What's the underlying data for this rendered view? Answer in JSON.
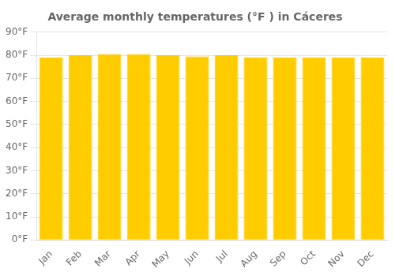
{
  "chart_data": {
    "type": "bar",
    "title": "Average monthly temperatures (°F ) in Cáceres",
    "categories": [
      "Jan",
      "Feb",
      "Mar",
      "Apr",
      "May",
      "Jun",
      "Jul",
      "Aug",
      "Sep",
      "Oct",
      "Nov",
      "Dec"
    ],
    "values": [
      79,
      80,
      80.5,
      80.5,
      80,
      79.5,
      80,
      79,
      79,
      79,
      79,
      79
    ],
    "color": "#FFCC00",
    "ylim": [
      0,
      90
    ],
    "yticks": [
      {
        "value": 0,
        "label": "0°F"
      },
      {
        "value": 10,
        "label": "10°F"
      },
      {
        "value": 20,
        "label": "20°F"
      },
      {
        "value": 30,
        "label": "30°F"
      },
      {
        "value": 40,
        "label": "40°F"
      },
      {
        "value": 50,
        "label": "50°F"
      },
      {
        "value": 60,
        "label": "60°F"
      },
      {
        "value": 70,
        "label": "70°F"
      },
      {
        "value": 80,
        "label": "80°F"
      },
      {
        "value": 90,
        "label": "90°F"
      }
    ],
    "grid": true
  }
}
